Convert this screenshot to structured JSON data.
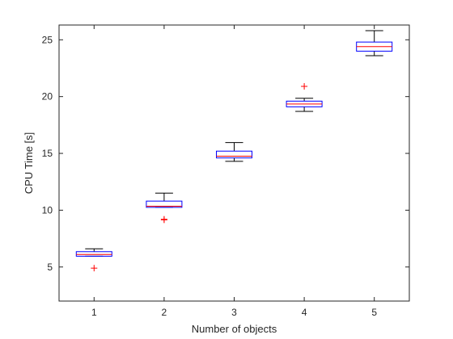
{
  "chart_data": {
    "type": "box",
    "xlabel": "Number of objects",
    "ylabel": "CPU Time [s]",
    "ylim": [
      2,
      26.3
    ],
    "xlim": [
      0.5,
      5.5
    ],
    "x_ticks": [
      "1",
      "2",
      "3",
      "4",
      "5"
    ],
    "y_ticks": [
      5,
      10,
      15,
      20,
      25
    ],
    "y_tick_labels": [
      "5",
      "10",
      "15",
      "20",
      "25"
    ],
    "grid": false,
    "colors": {
      "box": "#0000ff",
      "median": "#ff0000",
      "whisker": "#000000",
      "outlier": "#ff0000",
      "axis": "#262626"
    },
    "series": [
      {
        "x": 1,
        "whisker_low": 5.95,
        "q1": 5.95,
        "median": 6.1,
        "q3": 6.35,
        "whisker_high": 6.6,
        "outliers": [
          4.9
        ]
      },
      {
        "x": 2,
        "whisker_low": 10.25,
        "q1": 10.25,
        "median": 10.35,
        "q3": 10.8,
        "whisker_high": 11.5,
        "outliers": [
          9.15,
          9.2
        ]
      },
      {
        "x": 3,
        "whisker_low": 14.3,
        "q1": 14.6,
        "median": 14.75,
        "q3": 15.2,
        "whisker_high": 15.95,
        "outliers": []
      },
      {
        "x": 4,
        "whisker_low": 18.7,
        "q1": 19.1,
        "median": 19.35,
        "q3": 19.6,
        "whisker_high": 19.85,
        "outliers": [
          20.9
        ]
      },
      {
        "x": 5,
        "whisker_low": 23.6,
        "q1": 24.0,
        "median": 24.4,
        "q3": 24.8,
        "whisker_high": 25.8,
        "outliers": []
      }
    ]
  }
}
